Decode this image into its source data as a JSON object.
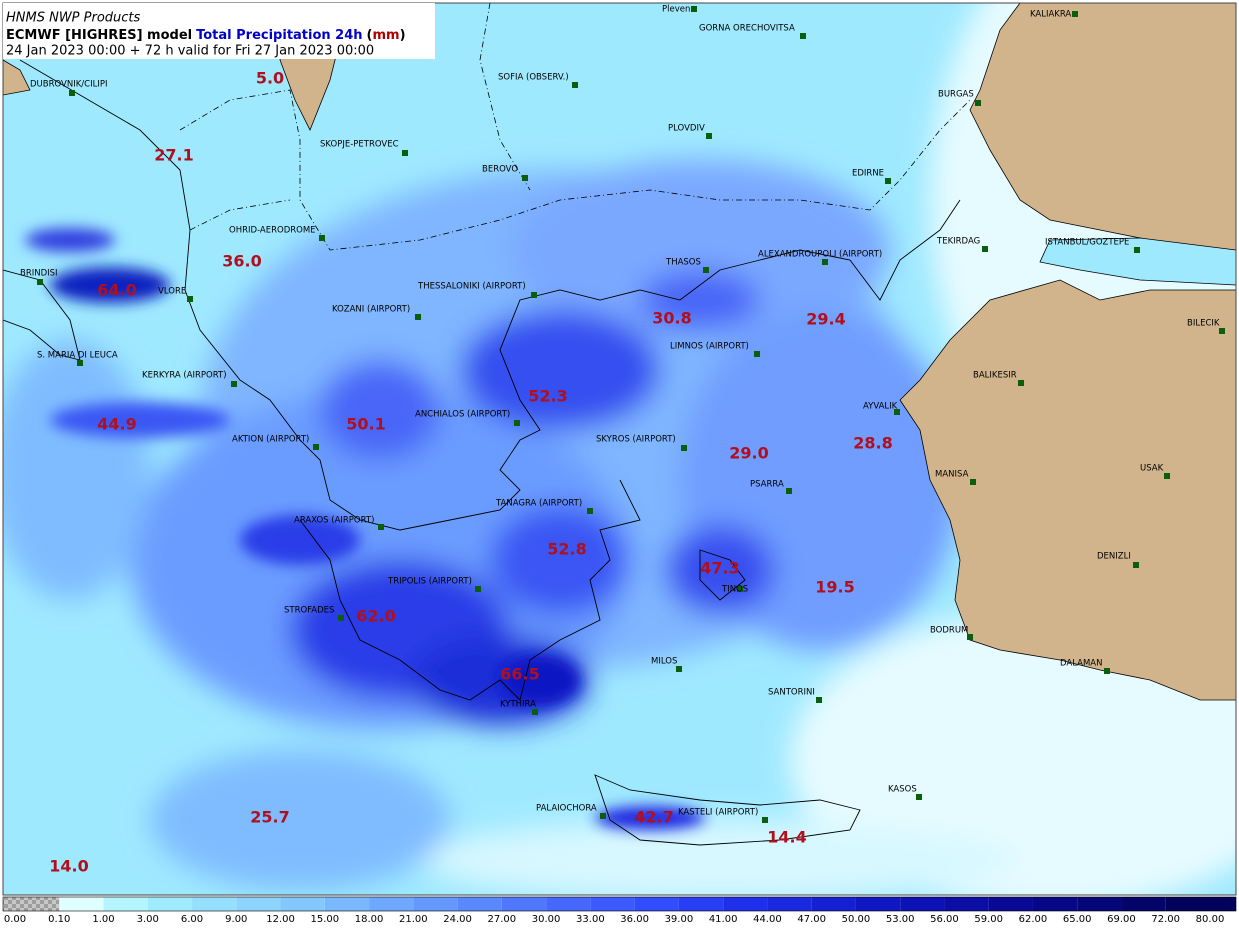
{
  "header": {
    "product": "HNMS NWP Products",
    "title_parts": [
      {
        "text": "ECMWF [HIGHRES] model",
        "color": "#000000"
      },
      {
        "text": "Total Precipitation 24h",
        "color": "#0000cc"
      },
      {
        "text": "(",
        "color": "#000000"
      },
      {
        "text": "mm",
        "color": "#b00000"
      },
      {
        "text": ")",
        "color": "#000000"
      }
    ],
    "validity": "24 Jan 2023 00:00 + 72 h valid for Fri 27 Jan 2023 00:00"
  },
  "stations": [
    "Pleven",
    "GORNA ORECHOVITSA",
    "KALIAKRA",
    "DUBROVNIK/CILIPI",
    "SOFIA (OBSERV.)",
    "BURGAS",
    "SKOPJE-PETROVEC",
    "PLOVDIV",
    "BEROVO",
    "EDIRNE",
    "OHRID-AERODROME",
    "TEKIRDAG",
    "ISTANBUL/GOZTEPE",
    "BRINDISI",
    "THESSALONIKI (AIRPORT)",
    "THASOS",
    "ALEXANDROUPOLI (AIRPORT)",
    "VLORE",
    "KOZANI (AIRPORT)",
    "BILECIK",
    "S. MARIA DI LEUCA",
    "LIMNOS (AIRPORT)",
    "KERKYRA (AIRPORT)",
    "BALIKESIR",
    "AYVALIK",
    "ANCHIALOS (AIRPORT)",
    "AKTION (AIRPORT)",
    "SKYROS (AIRPORT)",
    "MANISA",
    "USAK",
    "PSARRA",
    "TANAGRA (AIRPORT)",
    "ARAXOS (AIRPORT)",
    "DENIZLI",
    "TRIPOLIS (AIRPORT)",
    "TINOS",
    "STROFADES",
    "BODRUM",
    "MILOS",
    "DALAMAN",
    "SANTORINI",
    "KYTHIRA",
    "KASOS",
    "PALAIOCHORA",
    "KASTELI (AIRPORT)"
  ],
  "value_labels": [
    "5.0",
    "27.1",
    "36.0",
    "64.0",
    "30.8",
    "29.4",
    "52.3",
    "44.9",
    "50.1",
    "29.0",
    "28.8",
    "52.8",
    "47.3",
    "19.5",
    "62.0",
    "66.5",
    "42.7",
    "14.4",
    "25.7",
    "14.0"
  ],
  "colorbar": {
    "labels": [
      "0.00",
      "0.10",
      "1.00",
      "3.00",
      "6.00",
      "9.00",
      "12.00",
      "15.00",
      "18.00",
      "21.00",
      "24.00",
      "27.00",
      "30.00",
      "33.00",
      "36.00",
      "39.00",
      "41.00",
      "44.00",
      "47.00",
      "50.00",
      "53.00",
      "56.00",
      "59.00",
      "62.00",
      "65.00",
      "69.00",
      "72.00",
      "80.00"
    ],
    "colors": [
      "#9e9e9e",
      "#e0ffff",
      "#b4f5ff",
      "#a0ecff",
      "#96e0ff",
      "#8cd4ff",
      "#82c8ff",
      "#78b8ff",
      "#6ea8ff",
      "#6498ff",
      "#5a88ff",
      "#5078ff",
      "#4668ff",
      "#3c5aff",
      "#324cff",
      "#283ef5",
      "#1e30eb",
      "#1a28e0",
      "#1420d2",
      "#1018c3",
      "#0c12b4",
      "#0a0ea5",
      "#080a96",
      "#060887",
      "#050678",
      "#040469",
      "#02025a"
    ]
  }
}
